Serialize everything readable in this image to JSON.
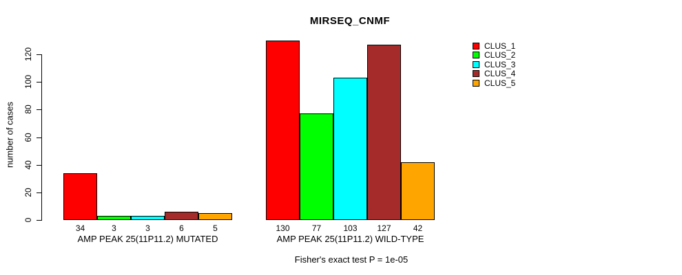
{
  "title": "MIRSEQ_CNMF",
  "caption": "Fisher's exact test P = 1e-05",
  "chart_data": {
    "type": "bar",
    "title": "MIRSEQ_CNMF",
    "xlabel": "",
    "ylabel": "number of cases",
    "ylim": [
      0,
      130
    ],
    "y_ticks": [
      0,
      20,
      40,
      60,
      80,
      100,
      120
    ],
    "grid": false,
    "legend_position": "right",
    "categories": [
      "AMP PEAK 25(11P11.2) MUTATED",
      "AMP PEAK 25(11P11.2) WILD-TYPE"
    ],
    "series": [
      {
        "name": "CLUS_1",
        "color": "#FF0000",
        "values": [
          34,
          130
        ]
      },
      {
        "name": "CLUS_2",
        "color": "#00FF00",
        "values": [
          3,
          77
        ]
      },
      {
        "name": "CLUS_3",
        "color": "#00FFFF",
        "values": [
          3,
          103
        ]
      },
      {
        "name": "CLUS_4",
        "color": "#A52A2A",
        "values": [
          6,
          127
        ]
      },
      {
        "name": "CLUS_5",
        "color": "#FFA500",
        "values": [
          5,
          42
        ]
      }
    ],
    "bar_value_labels": [
      [
        "34",
        "3",
        "3",
        "6",
        "5"
      ],
      [
        "130",
        "77",
        "103",
        "127",
        "42"
      ]
    ],
    "annotation": "Fisher's exact test P = 1e-05"
  }
}
